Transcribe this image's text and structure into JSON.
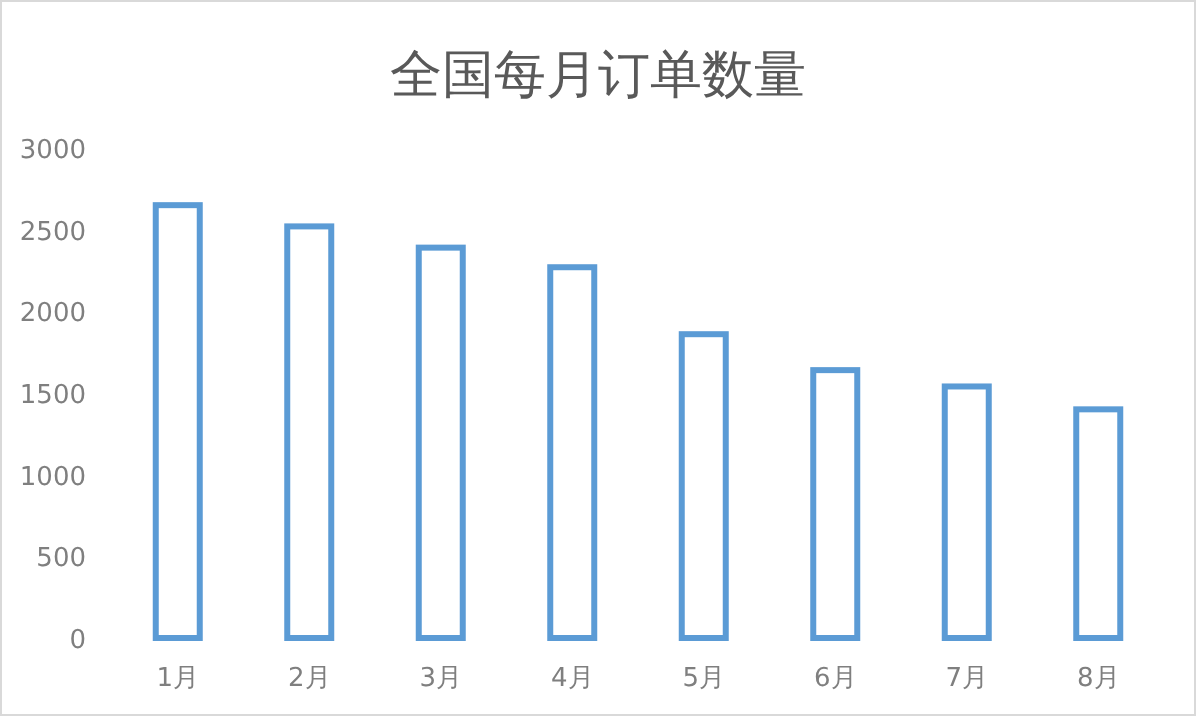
{
  "chart_data": {
    "type": "bar",
    "title": "全国每月订单数量",
    "categories": [
      "1月",
      "2月",
      "3月",
      "4月",
      "5月",
      "6月",
      "7月",
      "8月"
    ],
    "values": [
      2650,
      2520,
      2390,
      2270,
      1860,
      1640,
      1540,
      1400
    ],
    "color": "#5b9bd5",
    "ylim": [
      0,
      3000
    ],
    "yticks": [
      0,
      500,
      1000,
      1500,
      2000,
      2500,
      3000
    ],
    "grid": false
  }
}
